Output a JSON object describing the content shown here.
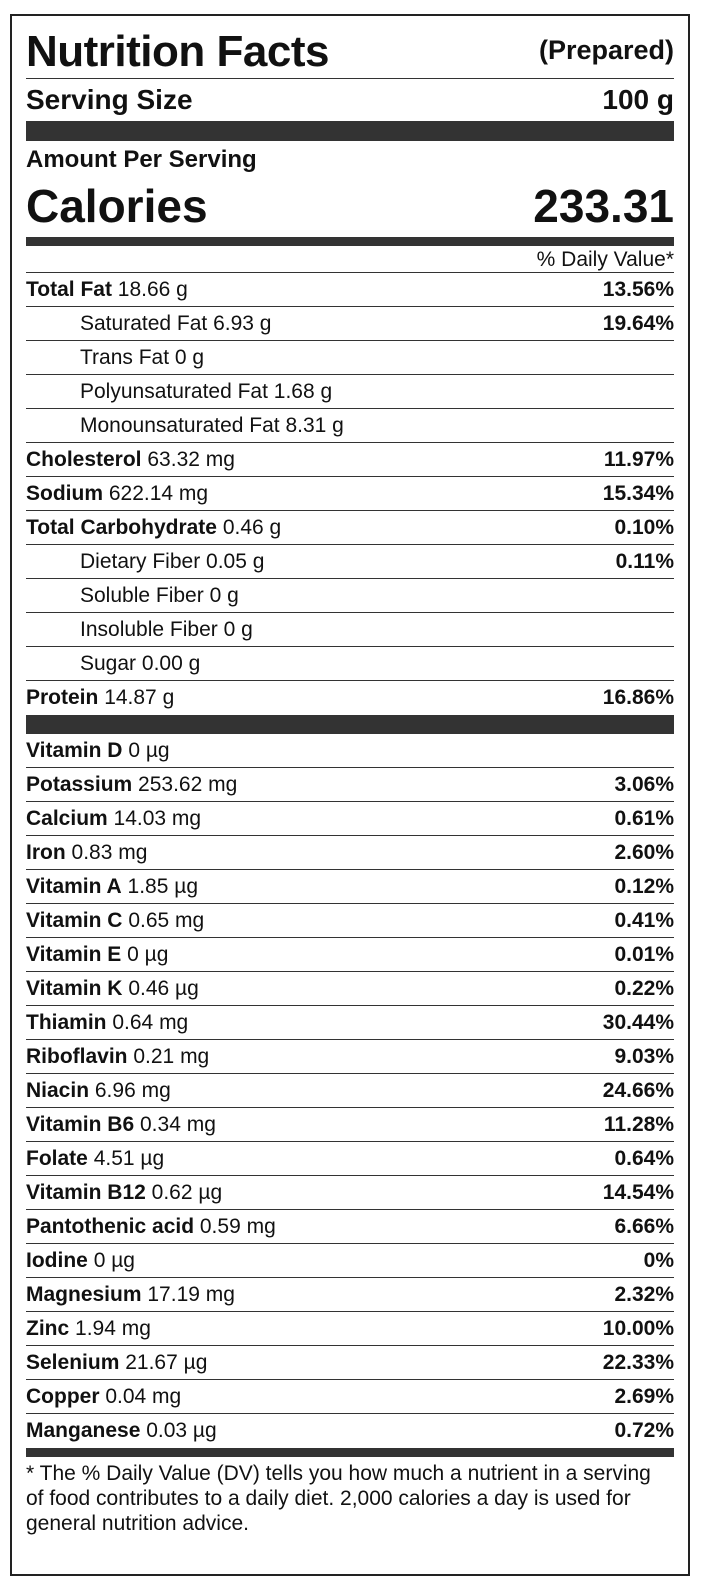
{
  "header": {
    "title": "Nutrition Facts",
    "status": "(Prepared)"
  },
  "serving": {
    "label": "Serving Size",
    "value": "100 g"
  },
  "amount_per_serving": "Amount Per Serving",
  "calories": {
    "label": "Calories",
    "value": "233.31"
  },
  "dv_header": "% Daily Value*",
  "macros": [
    {
      "name": "Total Fat",
      "amount": "18.66 g",
      "dv": "13.56%",
      "indent": false
    },
    {
      "name": "Saturated Fat",
      "amount": "6.93 g",
      "dv": "19.64%",
      "indent": true
    },
    {
      "name": "Trans Fat",
      "amount": "0 g",
      "dv": "",
      "indent": true
    },
    {
      "name": "Polyunsaturated Fat",
      "amount": "1.68 g",
      "dv": "",
      "indent": true
    },
    {
      "name": "Monounsaturated Fat",
      "amount": "8.31 g",
      "dv": "",
      "indent": true
    },
    {
      "name": "Cholesterol",
      "amount": "63.32 mg",
      "dv": "11.97%",
      "indent": false
    },
    {
      "name": "Sodium",
      "amount": "622.14 mg",
      "dv": "15.34%",
      "indent": false
    },
    {
      "name": "Total Carbohydrate",
      "amount": "0.46 g",
      "dv": "0.10%",
      "indent": false
    },
    {
      "name": "Dietary Fiber",
      "amount": "0.05 g",
      "dv": "0.11%",
      "indent": true
    },
    {
      "name": "Soluble Fiber",
      "amount": "0 g",
      "dv": "",
      "indent": true
    },
    {
      "name": "Insoluble Fiber",
      "amount": "0 g",
      "dv": "",
      "indent": true
    },
    {
      "name": "Sugar",
      "amount": "0.00 g",
      "dv": "",
      "indent": true
    },
    {
      "name": "Protein",
      "amount": "14.87 g",
      "dv": "16.86%",
      "indent": false
    }
  ],
  "micros": [
    {
      "name": "Vitamin D",
      "amount": "0 µg",
      "dv": ""
    },
    {
      "name": "Potassium",
      "amount": "253.62 mg",
      "dv": "3.06%"
    },
    {
      "name": "Calcium",
      "amount": "14.03 mg",
      "dv": "0.61%"
    },
    {
      "name": "Iron",
      "amount": "0.83 mg",
      "dv": "2.60%"
    },
    {
      "name": "Vitamin A",
      "amount": "1.85 µg",
      "dv": "0.12%"
    },
    {
      "name": "Vitamin C",
      "amount": "0.65 mg",
      "dv": "0.41%"
    },
    {
      "name": "Vitamin E",
      "amount": "0 µg",
      "dv": "0.01%"
    },
    {
      "name": "Vitamin K",
      "amount": "0.46 µg",
      "dv": "0.22%"
    },
    {
      "name": "Thiamin",
      "amount": "0.64 mg",
      "dv": "30.44%"
    },
    {
      "name": "Riboflavin",
      "amount": "0.21 mg",
      "dv": "9.03%"
    },
    {
      "name": "Niacin",
      "amount": "6.96 mg",
      "dv": "24.66%"
    },
    {
      "name": "Vitamin B6",
      "amount": "0.34 mg",
      "dv": "11.28%"
    },
    {
      "name": "Folate",
      "amount": "4.51 µg",
      "dv": "0.64%"
    },
    {
      "name": "Vitamin B12",
      "amount": "0.62 µg",
      "dv": "14.54%"
    },
    {
      "name": "Pantothenic acid",
      "amount": "0.59 mg",
      "dv": "6.66%"
    },
    {
      "name": "Iodine",
      "amount": "0 µg",
      "dv": "0%"
    },
    {
      "name": "Magnesium",
      "amount": "17.19 mg",
      "dv": "2.32%"
    },
    {
      "name": "Zinc",
      "amount": "1.94 mg",
      "dv": "10.00%"
    },
    {
      "name": "Selenium",
      "amount": "21.67 µg",
      "dv": "22.33%"
    },
    {
      "name": "Copper",
      "amount": "0.04 mg",
      "dv": "2.69%"
    },
    {
      "name": "Manganese",
      "amount": "0.03 µg",
      "dv": "0.72%"
    }
  ],
  "footnote": "* The % Daily Value (DV) tells you how much a nutrient in a serving of food contributes to a daily diet. 2,000 calories a day is used for general nutrition advice."
}
